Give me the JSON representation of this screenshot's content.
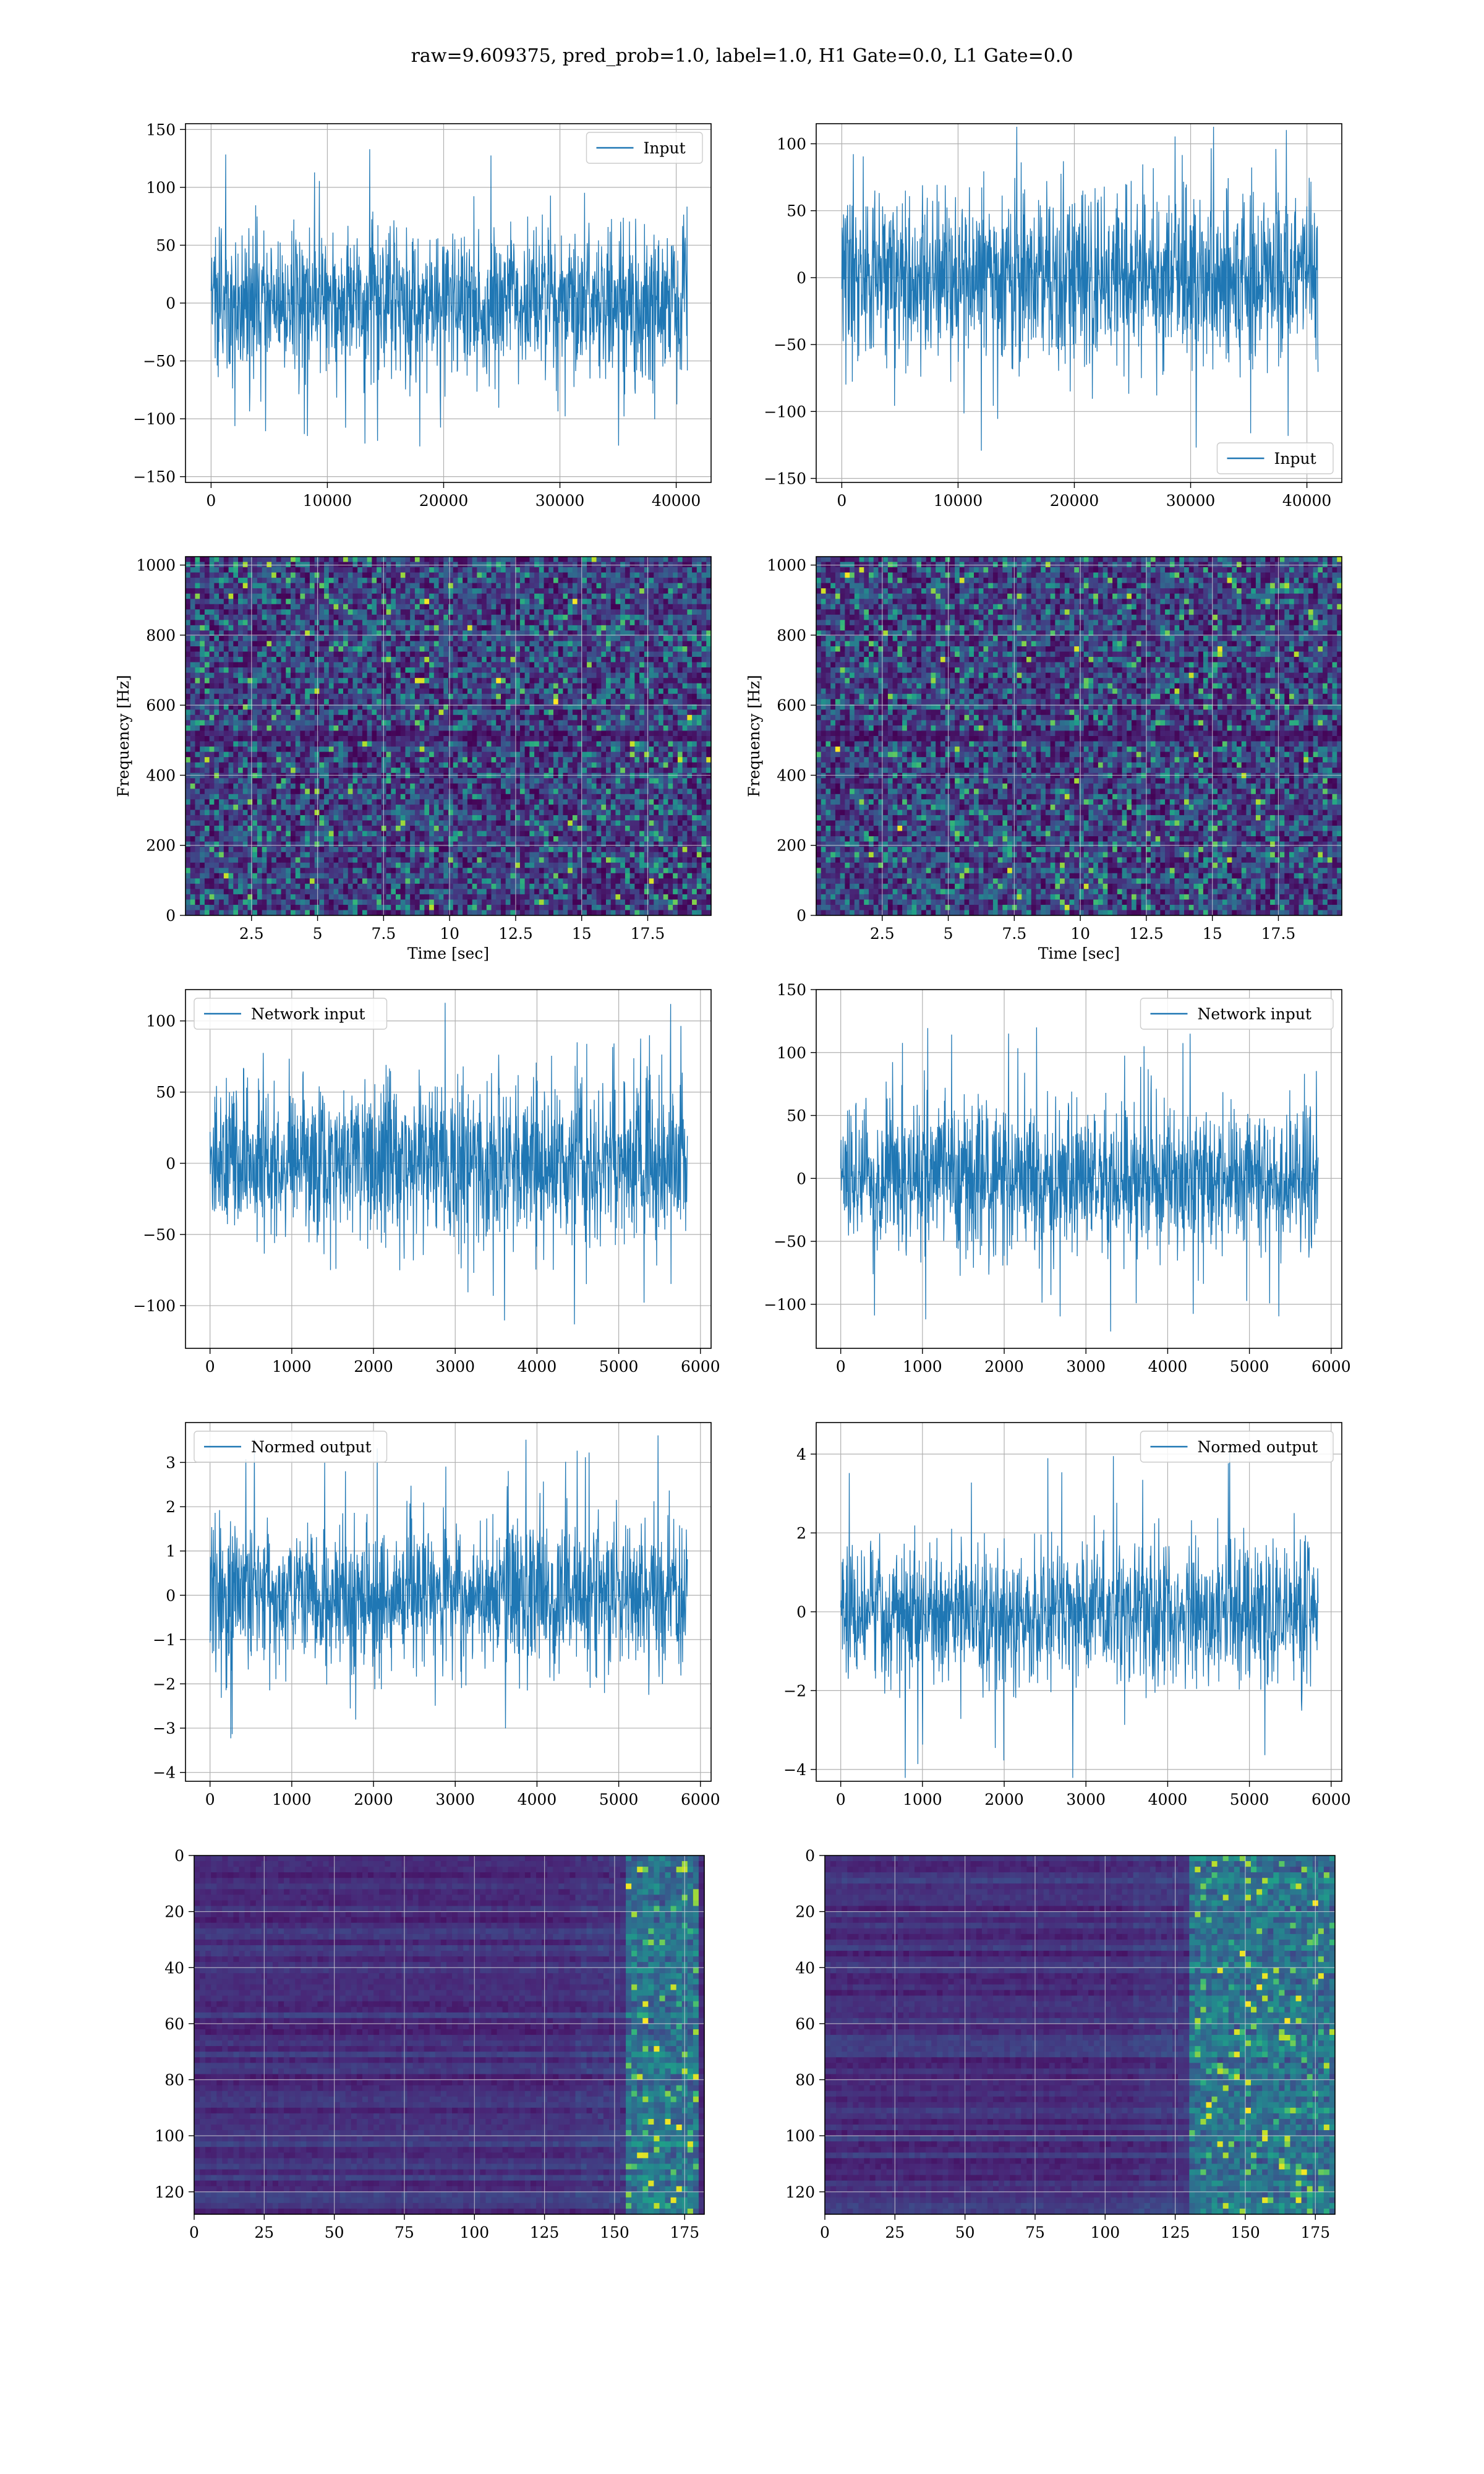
{
  "figure": {
    "suptitle": "raw=9.609375, pred_prob=1.0, label=1.0, H1 Gate=0.0, L1 Gate=0.0"
  },
  "colors": {
    "series": "#1f77b4",
    "grid": "#b0b0b0",
    "viridis_low": "#440154",
    "viridis_mid": "#3b528b",
    "viridis_hi": "#21918c",
    "viridis_top": "#fde725"
  },
  "chart_data": [
    {
      "id": "input-h1",
      "type": "line",
      "legend": "Input",
      "legend_loc": "upper right",
      "x_range": [
        0,
        40960
      ],
      "y_amplitude": 33,
      "y_peak": 140,
      "xlim": [
        -2200,
        43000
      ],
      "ylim": [
        -155,
        155
      ],
      "xticks": [
        0,
        10000,
        20000,
        30000,
        40000
      ],
      "yticks": [
        -150,
        -100,
        -50,
        0,
        50,
        100,
        150
      ],
      "grid": true
    },
    {
      "id": "input-l1",
      "type": "line",
      "legend": "Input",
      "legend_loc": "lower right",
      "x_range": [
        0,
        40960
      ],
      "y_amplitude": 32,
      "y_peak": 130,
      "xlim": [
        -2200,
        43000
      ],
      "ylim": [
        -153,
        115
      ],
      "xticks": [
        0,
        10000,
        20000,
        30000,
        40000
      ],
      "yticks": [
        -150,
        -100,
        -50,
        0,
        50,
        100
      ],
      "grid": true
    },
    {
      "id": "spectrogram-h1",
      "type": "heatmap",
      "xlabel": "Time [sec]",
      "ylabel": "Frequency [Hz]",
      "xlim": [
        0,
        19.9
      ],
      "ylim": [
        0,
        1024
      ],
      "xticks": [
        2.5,
        5.0,
        7.5,
        10.0,
        12.5,
        15.0,
        17.5
      ],
      "ytick_values": [
        0,
        200,
        400,
        600,
        800,
        1000
      ],
      "grid": true
    },
    {
      "id": "spectrogram-l1",
      "type": "heatmap",
      "xlabel": "Time [sec]",
      "ylabel": "Frequency [Hz]",
      "xlim": [
        0,
        19.9
      ],
      "ylim": [
        0,
        1024
      ],
      "xticks": [
        2.5,
        5.0,
        7.5,
        10.0,
        12.5,
        15.0,
        17.5
      ],
      "ytick_values": [
        0,
        200,
        400,
        600,
        800,
        1000
      ],
      "grid": true
    },
    {
      "id": "network-input-h1",
      "type": "line",
      "legend": "Network input",
      "legend_loc": "upper left",
      "x_range": [
        0,
        5840
      ],
      "y_amplitude": 29,
      "y_peak": 118,
      "xlim": [
        -300,
        6130
      ],
      "ylim": [
        -130,
        122
      ],
      "xticks": [
        0,
        1000,
        2000,
        3000,
        4000,
        5000,
        6000
      ],
      "yticks": [
        -100,
        -50,
        0,
        50,
        100
      ],
      "grid": true
    },
    {
      "id": "network-input-l1",
      "type": "line",
      "legend": "Network input",
      "legend_loc": "upper right",
      "x_range": [
        0,
        5840
      ],
      "y_amplitude": 30,
      "y_peak": 122,
      "xlim": [
        -300,
        6130
      ],
      "ylim": [
        -135,
        150
      ],
      "xticks": [
        0,
        1000,
        2000,
        3000,
        4000,
        5000,
        6000
      ],
      "yticks": [
        -100,
        -50,
        0,
        50,
        100,
        150
      ],
      "grid": true
    },
    {
      "id": "normed-output-h1",
      "type": "line",
      "legend": "Normed output",
      "legend_loc": "upper left",
      "x_range": [
        0,
        5840
      ],
      "y_amplitude": 0.85,
      "y_peak": 3.7,
      "xlim": [
        -300,
        6130
      ],
      "ylim": [
        -4.2,
        3.9
      ],
      "xticks": [
        0,
        1000,
        2000,
        3000,
        4000,
        5000,
        6000
      ],
      "yticks": [
        -4,
        -3,
        -2,
        -1,
        0,
        1,
        2,
        3
      ],
      "grid": true
    },
    {
      "id": "normed-output-l1",
      "type": "line",
      "legend": "Normed output",
      "legend_loc": "upper right",
      "x_range": [
        0,
        5840
      ],
      "y_amplitude": 0.9,
      "y_peak": 4.4,
      "xlim": [
        -300,
        6130
      ],
      "ylim": [
        -4.3,
        4.8
      ],
      "xticks": [
        0,
        1000,
        2000,
        3000,
        4000,
        5000,
        6000
      ],
      "yticks": [
        -4,
        -2,
        0,
        2,
        4
      ],
      "grid": true
    },
    {
      "id": "embedding-h1",
      "type": "heatmap",
      "xlim": [
        0,
        182
      ],
      "ylim": [
        0,
        128
      ],
      "y_inverted": true,
      "xticks": [
        0,
        25,
        50,
        75,
        100,
        125,
        150,
        175
      ],
      "yticks": [
        0,
        20,
        40,
        60,
        80,
        100,
        120
      ],
      "bright_band": [
        155,
        180
      ],
      "grid": true
    },
    {
      "id": "embedding-l1",
      "type": "heatmap",
      "xlim": [
        0,
        182
      ],
      "ylim": [
        0,
        128
      ],
      "y_inverted": true,
      "xticks": [
        0,
        25,
        50,
        75,
        100,
        125,
        150,
        175
      ],
      "yticks": [
        0,
        20,
        40,
        60,
        80,
        100,
        120
      ],
      "bright_band": [
        130,
        182
      ],
      "grid": true
    }
  ]
}
